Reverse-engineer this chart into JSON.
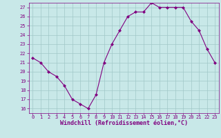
{
  "x": [
    0,
    1,
    2,
    3,
    4,
    5,
    6,
    7,
    8,
    9,
    10,
    11,
    12,
    13,
    14,
    15,
    16,
    17,
    18,
    19,
    20,
    21,
    22,
    23
  ],
  "y": [
    21.5,
    21.0,
    20.0,
    19.5,
    18.5,
    17.0,
    16.5,
    16.0,
    17.5,
    21.0,
    23.0,
    24.5,
    26.0,
    26.5,
    26.5,
    27.5,
    27.0,
    27.0,
    27.0,
    27.0,
    25.5,
    24.5,
    22.5,
    21.0
  ],
  "line_color": "#800080",
  "marker": "D",
  "marker_size": 2,
  "bg_color": "#c8e8e8",
  "grid_color": "#a0c8c8",
  "xlabel": "Windchill (Refroidissement éolien,°C)",
  "xlim_min": -0.5,
  "xlim_max": 23.5,
  "ylim_min": 15.5,
  "ylim_max": 27.5,
  "yticks": [
    16,
    17,
    18,
    19,
    20,
    21,
    22,
    23,
    24,
    25,
    26,
    27
  ],
  "xticks": [
    0,
    1,
    2,
    3,
    4,
    5,
    6,
    7,
    8,
    9,
    10,
    11,
    12,
    13,
    14,
    15,
    16,
    17,
    18,
    19,
    20,
    21,
    22,
    23
  ],
  "font_color": "#800080",
  "tick_fontsize": 5,
  "xlabel_fontsize": 6,
  "linewidth": 0.8,
  "grid_linewidth": 0.5
}
